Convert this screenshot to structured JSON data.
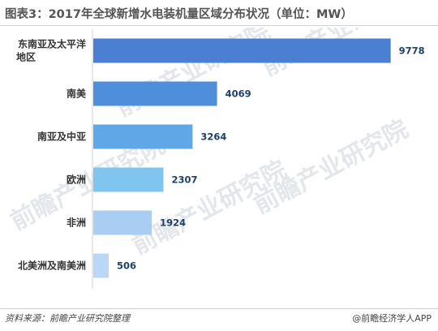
{
  "title": "图表3：2017年全球新增水电装机量区域分布状况（单位：MW）",
  "footer": {
    "source": "资料来源：前瞻产业研究院整理",
    "brand": "@前瞻经济学人APP"
  },
  "watermark": {
    "text": "前瞻产业研究院"
  },
  "chart_data": {
    "type": "bar",
    "orientation": "horizontal",
    "title": "图表3：2017年全球新增水电装机量区域分布状况（单位：MW）",
    "categories": [
      "东南亚及太平洋地区",
      "南美",
      "南亚及中亚",
      "欧洲",
      "非洲",
      "北美洲及南美洲"
    ],
    "values": [
      9778,
      4069,
      3264,
      2307,
      1924,
      506
    ],
    "colors": [
      "#4a7fd2",
      "#4f8edb",
      "#5fa7e6",
      "#7fc5ef",
      "#a9cdf3",
      "#bad8f6"
    ],
    "xlabel": "",
    "ylabel": "",
    "xlim": [
      0,
      10000
    ],
    "grid": false,
    "legend": "none",
    "data_labels": true
  }
}
